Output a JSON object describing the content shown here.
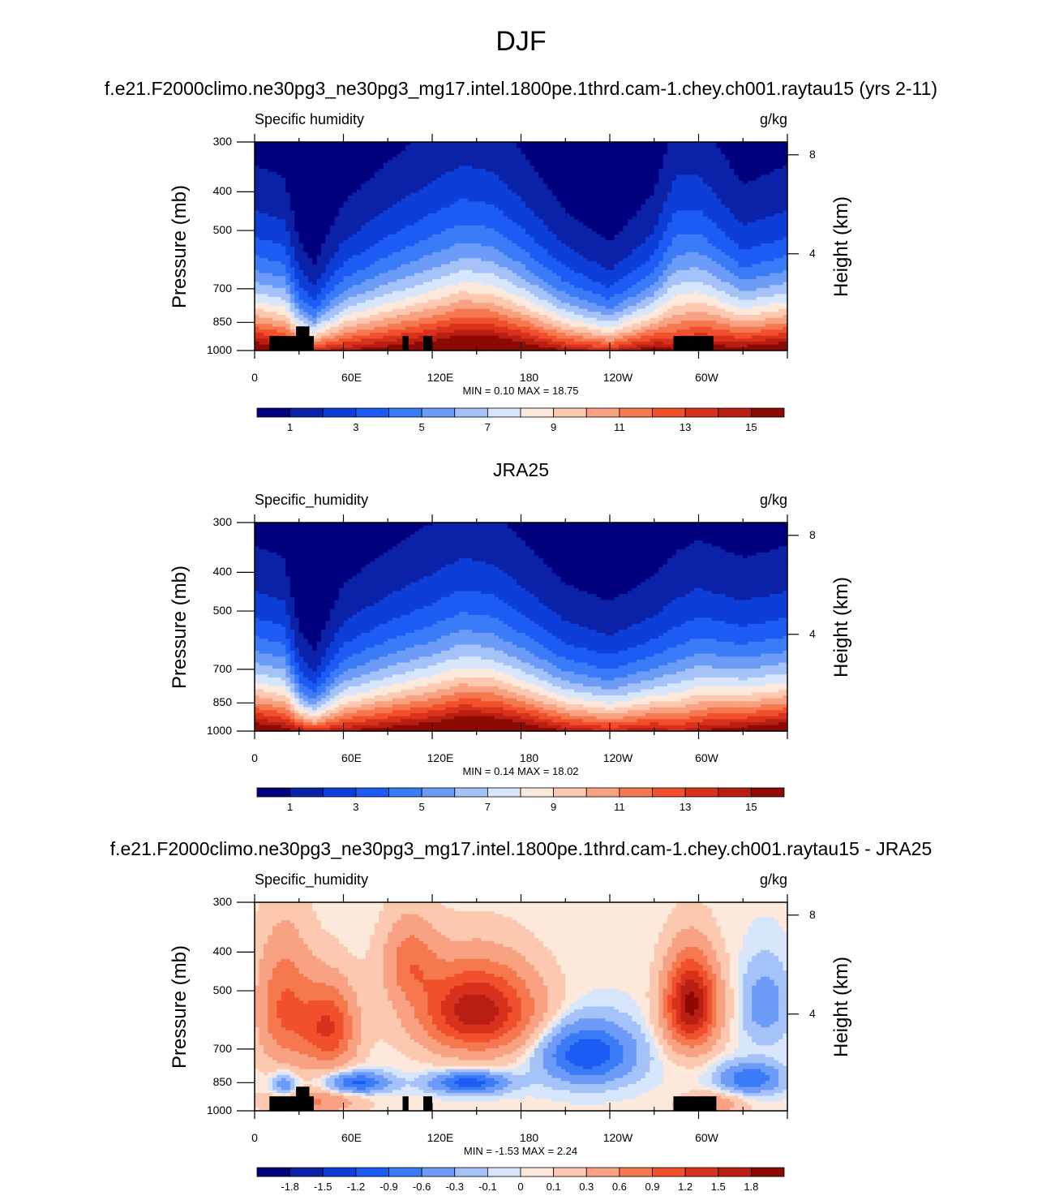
{
  "title": "DJF",
  "panels": [
    {
      "id": "model",
      "title": "f.e21.F2000climo.ne30pg3_ne30pg3_mg17.intel.1800pe.1thrd.cam-1.chey.ch001.raytau15 (yrs 2-11)",
      "field_label": "Specific humidity",
      "units": "g/kg",
      "minmax": "MIN =   0.10  MAX =  18.75",
      "colorbar_labels": [
        "1",
        "3",
        "5",
        "7",
        "9",
        "11",
        "13",
        "15"
      ],
      "y_axis_label": "Pressure (mb)",
      "y2_axis_label": "Height (km)"
    },
    {
      "id": "obs",
      "title": "JRA25",
      "field_label": "Specific_humidity",
      "units": "g/kg",
      "minmax": "MIN =   0.14  MAX =  18.02",
      "colorbar_labels": [
        "1",
        "3",
        "5",
        "7",
        "9",
        "11",
        "13",
        "15"
      ],
      "y_axis_label": "Pressure (mb)",
      "y2_axis_label": "Height (km)"
    },
    {
      "id": "diff",
      "title": "f.e21.F2000climo.ne30pg3_ne30pg3_mg17.intel.1800pe.1thrd.cam-1.chey.ch001.raytau15 - JRA25",
      "field_label": "Specific_humidity",
      "units": "g/kg",
      "minmax": "MIN =  -1.53  MAX =   2.24",
      "colorbar_labels": [
        "-1.8",
        "-1.5",
        "-1.2",
        "-0.9",
        "-0.6",
        "-0.3",
        "-0.1",
        "0",
        "0.1",
        "0.3",
        "0.6",
        "0.9",
        "1.2",
        "1.5",
        "1.8"
      ],
      "y_axis_label": "Pressure (mb)",
      "y2_axis_label": "Height (km)"
    }
  ],
  "axes": {
    "pressure_ticks": [
      "300",
      "400",
      "500",
      "700",
      "850",
      "1000"
    ],
    "pressure_values": [
      300,
      400,
      500,
      700,
      850,
      1000
    ],
    "height_ticks": [
      "8",
      "4"
    ],
    "height_values": [
      8,
      4
    ],
    "lon_ticks": [
      "0",
      "60E",
      "120E",
      "180",
      "120W",
      "60W"
    ],
    "lon_values": [
      0,
      60,
      120,
      180,
      240,
      300
    ]
  },
  "colors": {
    "seq": [
      "#00007f",
      "#0b22a8",
      "#0d3fd8",
      "#1c5cf4",
      "#3a7bf7",
      "#6d9cf8",
      "#a5c2f9",
      "#d7e6fb",
      "#fde8dc",
      "#fcc8b0",
      "#f9a283",
      "#f6784f",
      "#f0502b",
      "#d8311c",
      "#b81f12",
      "#8c0a02"
    ],
    "div": [
      "#00007f",
      "#0b22a8",
      "#0d3fd8",
      "#1c5cf4",
      "#3a7bf7",
      "#6d9cf8",
      "#a5c2f9",
      "#d7e6fb",
      "#fde8dc",
      "#fcc8b0",
      "#f9a283",
      "#f6784f",
      "#f0502b",
      "#d8311c",
      "#b81f12",
      "#8c0a02"
    ]
  },
  "chart_data": [
    {
      "type": "heatmap",
      "title": "f.e21.F2000climo.ne30pg3_ne30pg3_mg17.intel.1800pe.1thrd.cam-1.chey.ch001.raytau15 (yrs 2-11)",
      "variable": "Specific humidity",
      "units": "g/kg",
      "xlabel": "",
      "ylabel": "Pressure (mb)",
      "y2label": "Height (km)",
      "xlim": [
        0,
        360
      ],
      "ylim": [
        1000,
        300
      ],
      "y_scale": "log",
      "levels": [
        1,
        2,
        3,
        4,
        5,
        6,
        7,
        8,
        9,
        10,
        11,
        12,
        13,
        14,
        15
      ],
      "min": 0.1,
      "max": 18.75,
      "profile_lon": [
        0,
        20,
        30,
        40,
        60,
        90,
        120,
        140,
        160,
        180,
        210,
        240,
        270,
        285,
        300,
        330,
        360
      ],
      "surface_q": [
        17,
        16,
        15,
        14,
        15,
        16,
        17,
        18,
        18,
        17,
        15,
        14,
        16,
        15,
        16,
        16,
        17
      ],
      "moisture_depth": [
        1.2,
        1.15,
        0.75,
        0.6,
        1.0,
        1.25,
        1.45,
        1.55,
        1.5,
        1.3,
        0.95,
        0.75,
        1.05,
        1.6,
        1.55,
        1.1,
        1.2
      ],
      "topography_lon": [
        [
          10,
          40
        ],
        [
          28,
          37
        ],
        [
          100,
          104
        ],
        [
          114,
          120
        ],
        [
          283,
          310
        ]
      ],
      "topography_top_mb": [
        920,
        870,
        920,
        920,
        920
      ]
    },
    {
      "type": "heatmap",
      "title": "JRA25",
      "variable": "Specific_humidity",
      "units": "g/kg",
      "xlabel": "",
      "ylabel": "Pressure (mb)",
      "y2label": "Height (km)",
      "xlim": [
        0,
        360
      ],
      "ylim": [
        1000,
        300
      ],
      "y_scale": "log",
      "levels": [
        1,
        2,
        3,
        4,
        5,
        6,
        7,
        8,
        9,
        10,
        11,
        12,
        13,
        14,
        15
      ],
      "min": 0.14,
      "max": 18.02,
      "profile_lon": [
        0,
        20,
        30,
        40,
        60,
        90,
        120,
        140,
        160,
        180,
        210,
        240,
        270,
        285,
        300,
        330,
        360
      ],
      "surface_q": [
        17,
        16,
        15,
        14,
        15,
        16,
        17,
        18,
        18,
        17,
        15,
        14,
        15,
        14,
        15,
        16,
        17
      ],
      "moisture_depth": [
        1.2,
        1.15,
        0.7,
        0.55,
        1.0,
        1.2,
        1.35,
        1.45,
        1.4,
        1.25,
        1.0,
        0.9,
        1.05,
        1.25,
        1.3,
        1.15,
        1.2
      ]
    },
    {
      "type": "heatmap",
      "title": "f.e21.F2000climo.ne30pg3_ne30pg3_mg17.intel.1800pe.1thrd.cam-1.chey.ch001.raytau15 - JRA25",
      "variable": "Specific_humidity",
      "units": "g/kg",
      "xlabel": "",
      "ylabel": "Pressure (mb)",
      "y2label": "Height (km)",
      "xlim": [
        0,
        360
      ],
      "ylim": [
        1000,
        300
      ],
      "y_scale": "log",
      "levels": [
        -1.8,
        -1.5,
        -1.2,
        -0.9,
        -0.6,
        -0.3,
        -0.1,
        0,
        0.1,
        0.3,
        0.6,
        0.9,
        1.2,
        1.5,
        1.8
      ],
      "min": -1.53,
      "max": 2.24,
      "anomalies": [
        {
          "lon": 150,
          "p": 560,
          "amp": 1.7,
          "sx": 38,
          "sy": 140
        },
        {
          "lon": 50,
          "p": 620,
          "amp": 1.2,
          "sx": 18,
          "sy": 150
        },
        {
          "lon": 20,
          "p": 550,
          "amp": 0.9,
          "sx": 18,
          "sy": 200
        },
        {
          "lon": 295,
          "p": 540,
          "amp": 1.9,
          "sx": 17,
          "sy": 140
        },
        {
          "lon": 105,
          "p": 420,
          "amp": 0.7,
          "sx": 18,
          "sy": 100
        },
        {
          "lon": 225,
          "p": 720,
          "amp": -1.2,
          "sx": 30,
          "sy": 120
        },
        {
          "lon": 70,
          "p": 850,
          "amp": -1.0,
          "sx": 20,
          "sy": 50
        },
        {
          "lon": 145,
          "p": 850,
          "amp": -1.1,
          "sx": 25,
          "sy": 50
        },
        {
          "lon": 335,
          "p": 830,
          "amp": -0.9,
          "sx": 20,
          "sy": 70
        },
        {
          "lon": 345,
          "p": 540,
          "amp": -0.5,
          "sx": 15,
          "sy": 120
        },
        {
          "lon": 20,
          "p": 860,
          "amp": -0.6,
          "sx": 8,
          "sy": 60
        },
        {
          "lon": 40,
          "p": 950,
          "amp": 0.6,
          "sx": 30,
          "sy": 60
        },
        {
          "lon": 310,
          "p": 960,
          "amp": 0.5,
          "sx": 20,
          "sy": 60
        }
      ],
      "topography_lon": [
        [
          10,
          40
        ],
        [
          28,
          37
        ],
        [
          100,
          104
        ],
        [
          114,
          120
        ],
        [
          283,
          312
        ]
      ],
      "topography_top_mb": [
        920,
        870,
        920,
        920,
        920
      ]
    }
  ]
}
